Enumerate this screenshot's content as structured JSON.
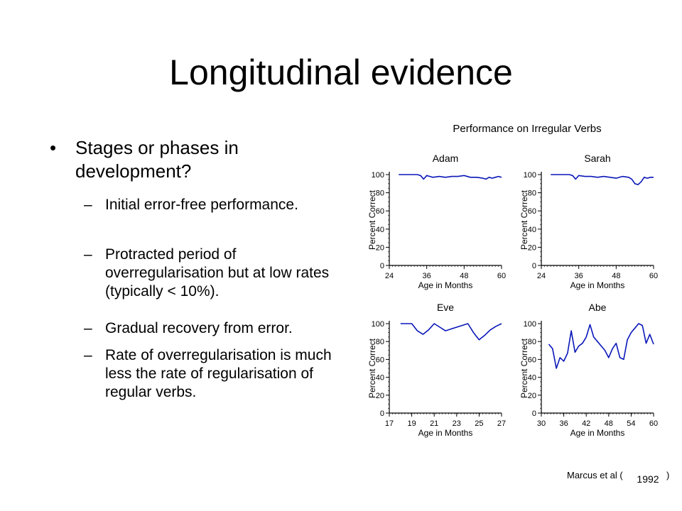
{
  "slide": {
    "title": "Longitudinal evidence",
    "bullet": "Stages or phases in development?",
    "subpoints": [
      "Initial error-free performance.",
      "Protracted period of overregularisation but at low rates (typically < 10%).",
      "Gradual recovery from error.",
      "Rate of overregularisation is much less the rate of regularisation of regular verbs."
    ],
    "citation": "Marcus et al (",
    "citation_close": ")",
    "citation_year": "1992"
  },
  "figure_title": "Performance on Irregular Verbs",
  "chart_data": [
    {
      "type": "line",
      "title": "Adam",
      "xlabel": "Age in Months",
      "ylabel": "Percent Correct",
      "xlim": [
        24,
        60
      ],
      "ylim": [
        0,
        100
      ],
      "xticks": [
        "24",
        "36",
        "48",
        "60"
      ],
      "yticks": [
        "0",
        "20",
        "40",
        "60",
        "80",
        "100"
      ],
      "series": [
        {
          "x": [
            27,
            30,
            32,
            33,
            34,
            35,
            36,
            37,
            38,
            40,
            42,
            44,
            46,
            48,
            50,
            52,
            54,
            55,
            56,
            57,
            58,
            59,
            60
          ],
          "values": [
            100,
            100,
            100,
            100,
            99,
            95,
            99,
            98,
            97,
            98,
            97,
            98,
            98,
            99,
            97,
            97,
            96,
            95,
            97,
            96,
            97,
            98,
            97
          ]
        }
      ]
    },
    {
      "type": "line",
      "title": "Sarah",
      "xlabel": "Age in Months",
      "ylabel": "Percent Correct",
      "xlim": [
        24,
        60
      ],
      "ylim": [
        0,
        100
      ],
      "xticks": [
        "24",
        "36",
        "48",
        "60"
      ],
      "yticks": [
        "0",
        "20",
        "40",
        "60",
        "80",
        "100"
      ],
      "series": [
        {
          "x": [
            27,
            30,
            33,
            34,
            35,
            36,
            38,
            40,
            42,
            44,
            46,
            48,
            50,
            52,
            53,
            54,
            55,
            56,
            57,
            58,
            59,
            60
          ],
          "values": [
            100,
            100,
            100,
            99,
            95,
            99,
            98,
            98,
            97,
            98,
            97,
            96,
            98,
            97,
            95,
            90,
            89,
            92,
            97,
            96,
            97,
            97
          ]
        }
      ]
    },
    {
      "type": "line",
      "title": "Eve",
      "xlabel": "Age in Months",
      "ylabel": "Percent Correct",
      "xlim": [
        17,
        27
      ],
      "ylim": [
        0,
        100
      ],
      "xticks": [
        "17",
        "19",
        "21",
        "23",
        "25",
        "27"
      ],
      "yticks": [
        "0",
        "20",
        "40",
        "60",
        "80",
        "100"
      ],
      "series": [
        {
          "x": [
            18,
            19,
            19.5,
            20,
            20.5,
            21,
            21.5,
            22,
            23,
            24,
            24.5,
            25,
            25.5,
            26,
            26.5,
            27
          ],
          "values": [
            100,
            100,
            92,
            88,
            93,
            100,
            96,
            92,
            96,
            100,
            90,
            82,
            87,
            93,
            97,
            100
          ]
        }
      ]
    },
    {
      "type": "line",
      "title": "Abe",
      "xlabel": "Age in Months",
      "ylabel": "Percent Correct",
      "xlim": [
        30,
        60
      ],
      "ylim": [
        0,
        100
      ],
      "xticks": [
        "30",
        "36",
        "42",
        "48",
        "54",
        "60"
      ],
      "yticks": [
        "0",
        "20",
        "40",
        "60",
        "80",
        "100"
      ],
      "series": [
        {
          "x": [
            32,
            33,
            34,
            35,
            36,
            37,
            38,
            39,
            40,
            41,
            42,
            43,
            44,
            45,
            46,
            47,
            48,
            49,
            50,
            51,
            52,
            53,
            54,
            55,
            56,
            57,
            58,
            59,
            60
          ],
          "values": [
            77,
            72,
            50,
            62,
            58,
            67,
            92,
            68,
            75,
            78,
            85,
            99,
            85,
            80,
            75,
            70,
            62,
            72,
            78,
            62,
            60,
            82,
            90,
            95,
            100,
            98,
            78,
            88,
            77
          ]
        }
      ]
    }
  ]
}
